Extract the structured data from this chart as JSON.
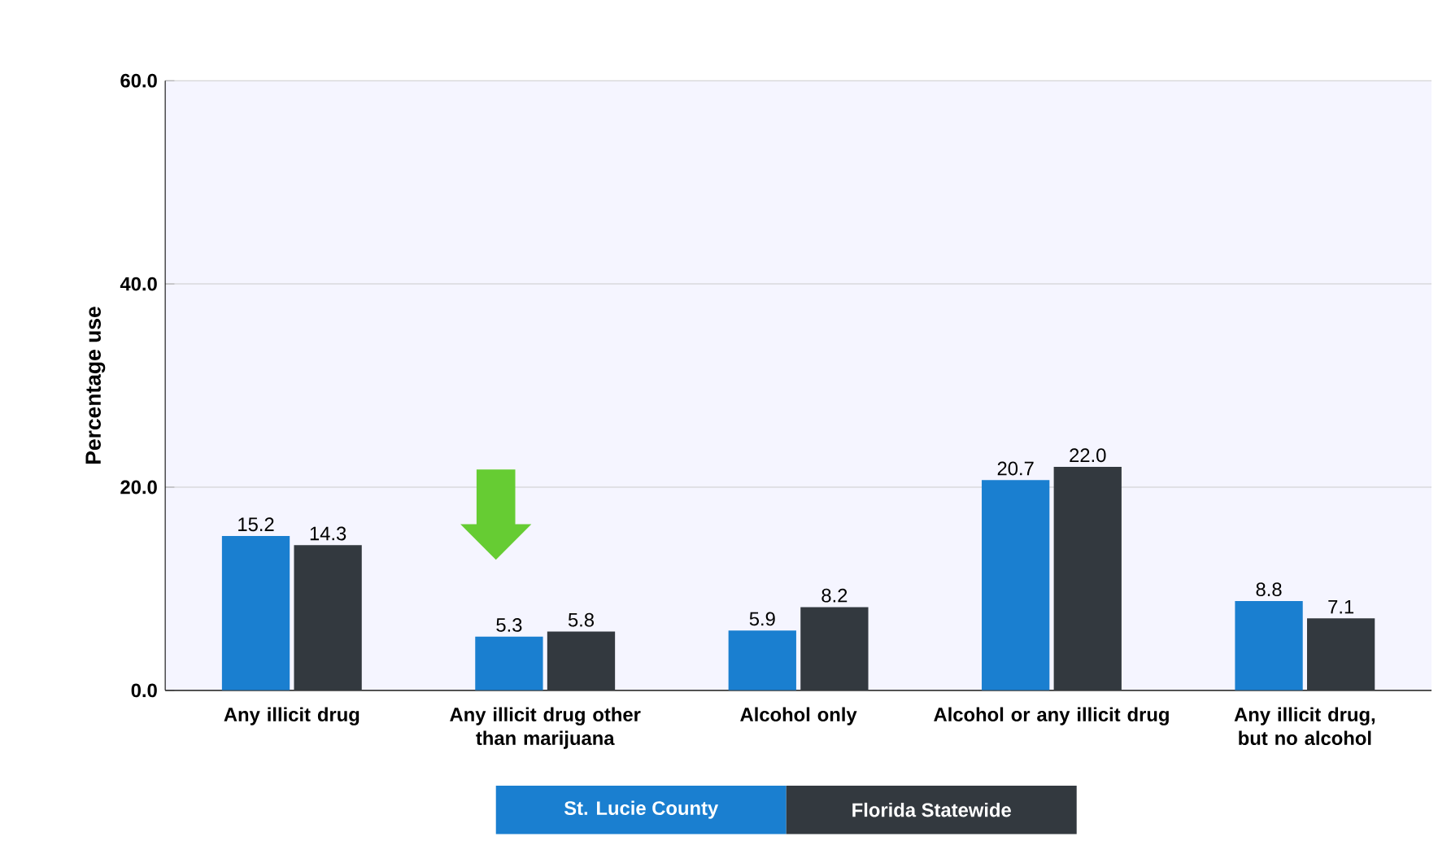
{
  "chart_data": {
    "type": "bar",
    "ylabel": "Percentage use",
    "categories": [
      "Any illicit drug",
      "Any illicit drug other than marijuana",
      "Alcohol only",
      "Alcohol or any illicit drug",
      "Any illicit drug, but no alcohol"
    ],
    "series": [
      {
        "name": "St. Lucie County",
        "color": "#1a7fd0",
        "values": [
          15.2,
          5.3,
          5.9,
          20.7,
          8.8
        ],
        "value_labels": [
          "15.2",
          "5.3",
          "5.9",
          "20.7",
          "8.8"
        ]
      },
      {
        "name": "Florida Statewide",
        "color": "#33393f",
        "values": [
          14.3,
          5.8,
          8.2,
          22.0,
          7.1
        ],
        "value_labels": [
          "14.3",
          "5.8",
          "8.2",
          "22.0",
          "7.1"
        ]
      }
    ],
    "ylim": [
      0,
      60
    ],
    "yticks": [
      {
        "value": 0,
        "label": "0.0"
      },
      {
        "value": 20,
        "label": "20.0"
      },
      {
        "value": 40,
        "label": "40.0"
      },
      {
        "value": 60,
        "label": "60.0"
      }
    ],
    "grid": "y",
    "legend": "bottom"
  }
}
